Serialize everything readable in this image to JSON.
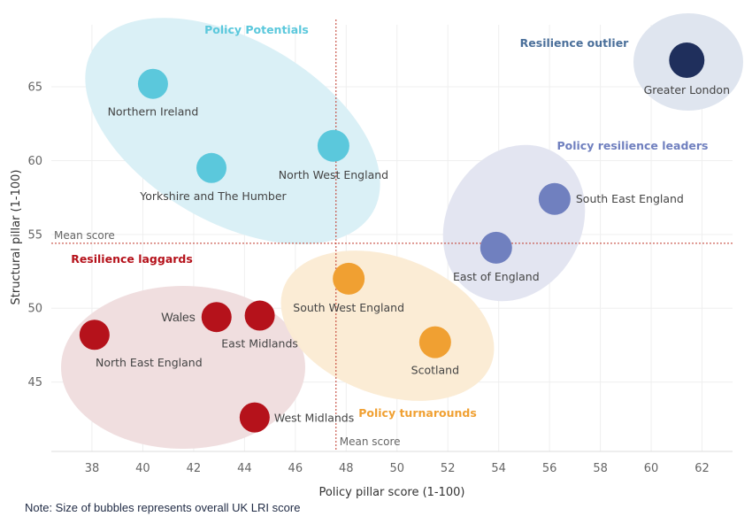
{
  "chart_data": {
    "type": "scatter",
    "xlabel": "Policy pillar score (1-100)",
    "ylabel": "Structural pillar (1-100)",
    "xlim": [
      36.4,
      63.2
    ],
    "ylim": [
      40.3,
      69.2
    ],
    "xticks": [
      38,
      40,
      42,
      44,
      46,
      48,
      50,
      52,
      54,
      56,
      58,
      60,
      62
    ],
    "yticks": [
      45,
      50,
      55,
      60,
      65
    ],
    "grid": true,
    "mean": {
      "x": 47.6,
      "y": 54.4,
      "x_label": "Mean score",
      "y_label": "Mean score",
      "color": "#c0392b"
    },
    "groups": [
      {
        "name": "Policy Potentials",
        "color": "#5bc8dc",
        "fill": "#d8eff6",
        "label_color": "#5bc8dc"
      },
      {
        "name": "Resilience outlier",
        "color": "#1f2f5c",
        "fill": "#dde4ee",
        "label_color": "#4a6f9a"
      },
      {
        "name": "Policy resilience leaders",
        "color": "#7080bf",
        "fill": "#e1e4f0",
        "label_color": "#7080bf"
      },
      {
        "name": "Resilience laggards",
        "color": "#b5121b",
        "fill": "#efdcdd",
        "label_color": "#b5121b"
      },
      {
        "name": "Policy turnarounds",
        "color": "#f0a032",
        "fill": "#fbebd3",
        "label_color": "#f0a032"
      }
    ],
    "points": [
      {
        "name": "Northern Ireland",
        "x": 40.4,
        "y": 65.2,
        "group": 0
      },
      {
        "name": "Yorkshire and The Humber",
        "x": 42.7,
        "y": 59.5,
        "group": 0
      },
      {
        "name": "North West England",
        "x": 47.5,
        "y": 61.0,
        "group": 0
      },
      {
        "name": "Greater London",
        "x": 61.4,
        "y": 66.8,
        "group": 1
      },
      {
        "name": "South East England",
        "x": 56.2,
        "y": 57.4,
        "group": 2
      },
      {
        "name": "East of England",
        "x": 53.9,
        "y": 54.1,
        "group": 2
      },
      {
        "name": "Wales",
        "x": 42.9,
        "y": 49.4,
        "group": 3
      },
      {
        "name": "East Midlands",
        "x": 44.6,
        "y": 49.5,
        "group": 3
      },
      {
        "name": "North East England",
        "x": 38.1,
        "y": 48.2,
        "group": 3
      },
      {
        "name": "West Midlands",
        "x": 44.4,
        "y": 42.6,
        "group": 3
      },
      {
        "name": "South West England",
        "x": 48.1,
        "y": 52.0,
        "group": 4
      },
      {
        "name": "Scotland",
        "x": 51.5,
        "y": 47.7,
        "group": 4
      }
    ]
  },
  "note": "Note: Size of bubbles represents overall UK LRI score"
}
